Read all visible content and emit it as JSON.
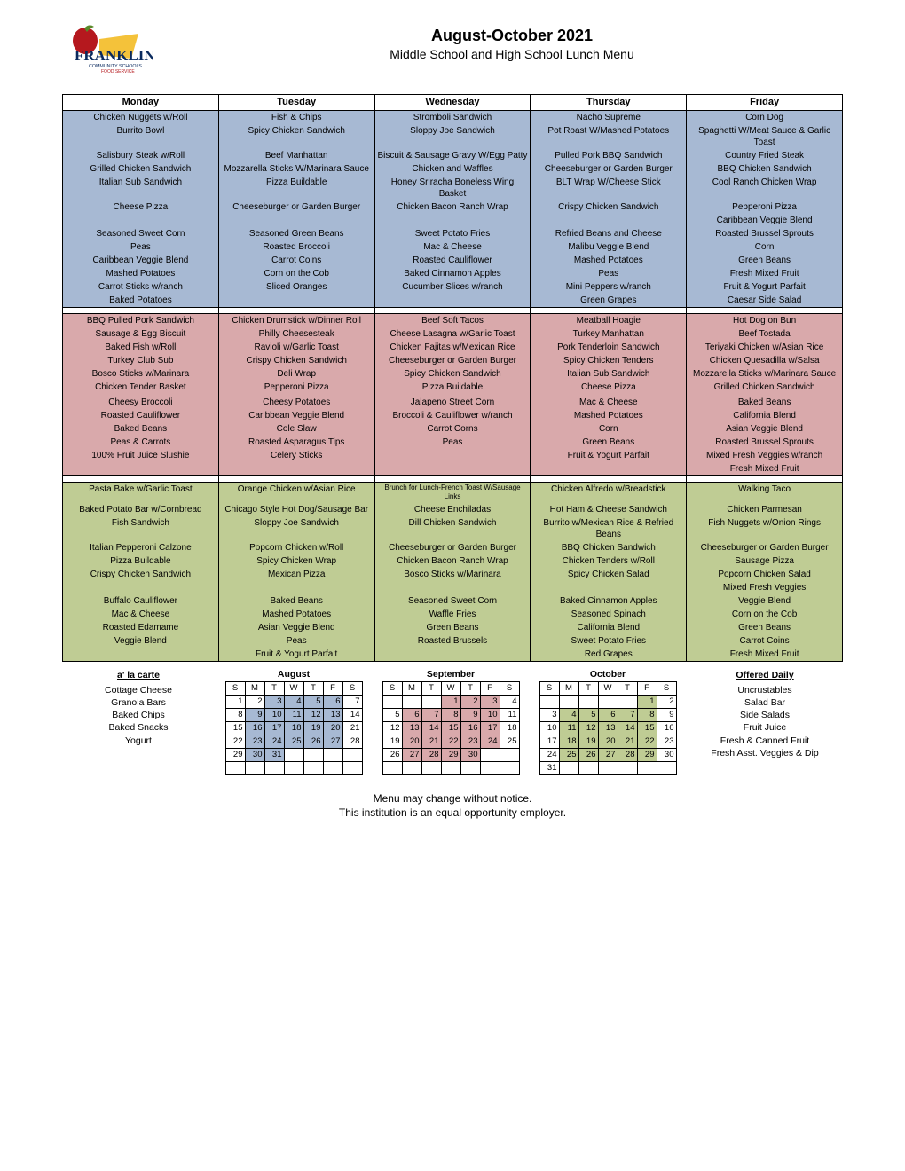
{
  "title": "August-October 2021",
  "subtitle": "Middle School and High School Lunch Menu",
  "days": [
    "Monday",
    "Tuesday",
    "Wednesday",
    "Thursday",
    "Friday"
  ],
  "colors": {
    "blue": "#a7b9d3",
    "pink": "#d9a9ab",
    "green": "#bfcc94",
    "cal_blue": "#a7b9d3",
    "cal_pink": "#d9a9ab",
    "cal_green": "#bfcc94"
  },
  "sections": [
    {
      "color": "blue",
      "rows": [
        [
          "Chicken Nuggets w/Roll",
          "Fish & Chips",
          "Stromboli Sandwich",
          "Nacho Supreme",
          "Corn Dog"
        ],
        [
          "Burrito Bowl",
          "Spicy Chicken Sandwich",
          "Sloppy Joe Sandwich",
          "Pot Roast W/Mashed Potatoes",
          "Spaghetti W/Meat Sauce & Garlic Toast"
        ],
        [
          "Salisbury Steak w/Roll",
          "Beef Manhattan",
          "Biscuit & Sausage Gravy W/Egg Patty",
          "Pulled Pork BBQ Sandwich",
          "Country Fried Steak"
        ],
        [
          "Grilled Chicken Sandwich",
          "Mozzarella Sticks W/Marinara Sauce",
          "Chicken and Waffles",
          "Cheeseburger or Garden Burger",
          "BBQ Chicken Sandwich"
        ],
        [
          "Italian Sub Sandwich",
          "Pizza Buildable",
          "Honey Sriracha Boneless Wing Basket",
          "BLT Wrap W/Cheese Stick",
          "Cool Ranch Chicken Wrap"
        ],
        [
          "Cheese Pizza",
          "Cheeseburger or Garden Burger",
          "Chicken Bacon Ranch Wrap",
          "Crispy Chicken Sandwich",
          "Pepperoni Pizza"
        ],
        [
          "",
          "",
          "",
          "",
          "Caribbean Veggie Blend"
        ],
        [
          "Seasoned Sweet Corn",
          "Seasoned Green Beans",
          "Sweet Potato Fries",
          "Refried Beans and Cheese",
          "Roasted Brussel Sprouts"
        ],
        [
          "Peas",
          "Roasted Broccoli",
          "Mac & Cheese",
          "Malibu Veggie Blend",
          "Corn"
        ],
        [
          "Caribbean Veggie Blend",
          "Carrot Coins",
          "Roasted Cauliflower",
          "Mashed Potatoes",
          "Green Beans"
        ],
        [
          "Mashed Potatoes",
          "Corn on the Cob",
          "Baked Cinnamon Apples",
          "Peas",
          "Fresh Mixed Fruit"
        ],
        [
          "Carrot Sticks w/ranch",
          "Sliced Oranges",
          "Cucumber Slices w/ranch",
          "Mini Peppers w/ranch",
          "Fruit & Yogurt Parfait"
        ],
        [
          "Baked Potatoes",
          "",
          "",
          "Green Grapes",
          "Caesar Side Salad"
        ]
      ]
    },
    {
      "color": "pink",
      "rows": [
        [
          "BBQ Pulled Pork Sandwich",
          "Chicken Drumstick w/Dinner Roll",
          "Beef Soft Tacos",
          "Meatball Hoagie",
          "Hot Dog on Bun"
        ],
        [
          "Sausage & Egg Biscuit",
          "Philly Cheesesteak",
          "Cheese Lasagna w/Garlic Toast",
          "Turkey Manhattan",
          "Beef Tostada"
        ],
        [
          "Baked Fish w/Roll",
          "Ravioli w/Garlic Toast",
          "Chicken Fajitas w/Mexican Rice",
          "Pork Tenderloin Sandwich",
          "Teriyaki Chicken w/Asian Rice"
        ],
        [
          "Turkey Club Sub",
          "Crispy Chicken Sandwich",
          "Cheeseburger or Garden Burger",
          "Spicy Chicken Tenders",
          "Chicken Quesadilla w/Salsa"
        ],
        [
          "Bosco Sticks w/Marinara",
          "Deli Wrap",
          "Spicy Chicken Sandwich",
          "Italian Sub Sandwich",
          "Mozzarella Sticks w/Marinara Sauce"
        ],
        [
          "Chicken Tender Basket",
          "Pepperoni Pizza",
          "Pizza Buildable",
          "Cheese Pizza",
          "Grilled Chicken Sandwich"
        ],
        [
          "",
          "",
          "",
          "",
          ""
        ],
        [
          "Cheesy Broccoli",
          "Cheesy Potatoes",
          "Jalapeno Street Corn",
          "Mac & Cheese",
          "Baked Beans"
        ],
        [
          "Roasted Cauliflower",
          "Caribbean Veggie Blend",
          "Broccoli & Cauliflower w/ranch",
          "Mashed Potatoes",
          "California Blend"
        ],
        [
          "Baked Beans",
          "Cole Slaw",
          "Carrot Corns",
          "Corn",
          "Asian Veggie Blend"
        ],
        [
          "Peas & Carrots",
          "Roasted Asparagus Tips",
          "Peas",
          "Green Beans",
          "Roasted Brussel Sprouts"
        ],
        [
          "100% Fruit Juice Slushie",
          "Celery Sticks",
          "",
          "Fruit & Yogurt Parfait",
          "Mixed Fresh Veggies w/ranch"
        ],
        [
          "",
          "",
          "",
          "",
          "Fresh Mixed Fruit"
        ]
      ]
    },
    {
      "color": "green",
      "rows": [
        [
          "Pasta Bake w/Garlic Toast",
          "Orange Chicken w/Asian Rice",
          "Brunch for Lunch-French Toast W/Sausage Links",
          "Chicken Alfredo w/Breadstick",
          "Walking Taco"
        ],
        [
          "Baked Potato Bar w/Cornbread",
          "Chicago Style Hot Dog/Sausage Bar",
          "Cheese Enchiladas",
          "Hot Ham & Cheese Sandwich",
          "Chicken Parmesan"
        ],
        [
          "Fish Sandwich",
          "Sloppy Joe Sandwich",
          "Dill Chicken Sandwich",
          "Burrito w/Mexican Rice & Refried Beans",
          "Fish Nuggets w/Onion Rings"
        ],
        [
          "Italian Pepperoni Calzone",
          "Popcorn Chicken w/Roll",
          "Cheeseburger or Garden Burger",
          "BBQ Chicken Sandwich",
          "Cheeseburger or Garden Burger"
        ],
        [
          "Pizza Buildable",
          "Spicy Chicken Wrap",
          "Chicken Bacon Ranch Wrap",
          "Chicken Tenders w/Roll",
          "Sausage Pizza"
        ],
        [
          "Crispy Chicken Sandwich",
          "Mexican Pizza",
          "Bosco Sticks w/Marinara",
          "Spicy Chicken Salad",
          "Popcorn Chicken Salad"
        ],
        [
          "",
          "",
          "",
          "",
          "Mixed Fresh Veggies"
        ],
        [
          "Buffalo Cauliflower",
          "Baked Beans",
          "Seasoned Sweet Corn",
          "Baked Cinnamon Apples",
          "Veggie Blend"
        ],
        [
          "Mac & Cheese",
          "Mashed Potatoes",
          "Waffle Fries",
          "Seasoned Spinach",
          "Corn on the Cob"
        ],
        [
          "Roasted Edamame",
          "Asian Veggie Blend",
          "Green Beans",
          "California Blend",
          "Green Beans"
        ],
        [
          "Veggie Blend",
          "Peas",
          "Roasted Brussels",
          "Sweet Potato Fries",
          "Carrot Coins"
        ],
        [
          "",
          "Fruit & Yogurt Parfait",
          "",
          "Red Grapes",
          "Fresh Mixed Fruit"
        ]
      ]
    }
  ],
  "alacarte": {
    "heading": "a' la carte",
    "items": [
      "Cottage Cheese",
      "Granola Bars",
      "Baked Chips",
      "Baked Snacks",
      "Yogurt"
    ]
  },
  "offered": {
    "heading": "Offered Daily",
    "items": [
      "Uncrustables",
      "Salad Bar",
      "Side Salads",
      "Fruit Juice",
      "Fresh & Canned Fruit",
      "Fresh Asst. Veggies & Dip"
    ]
  },
  "calendars": [
    {
      "name": "August",
      "color": "cal_blue",
      "days": [
        "S",
        "M",
        "T",
        "W",
        "T",
        "F",
        "S"
      ],
      "weeks": [
        [
          "1",
          "2",
          "3",
          "4",
          "5",
          "6",
          "7"
        ],
        [
          "8",
          "9",
          "10",
          "11",
          "12",
          "13",
          "14"
        ],
        [
          "15",
          "16",
          "17",
          "18",
          "19",
          "20",
          "21"
        ],
        [
          "22",
          "23",
          "24",
          "25",
          "26",
          "27",
          "28"
        ],
        [
          "29",
          "30",
          "31",
          "",
          "",
          "",
          ""
        ],
        [
          "",
          "",
          "",
          "",
          "",
          "",
          ""
        ]
      ],
      "shaded": [
        [
          0,
          2
        ],
        [
          0,
          3
        ],
        [
          0,
          4
        ],
        [
          0,
          5
        ],
        [
          1,
          1
        ],
        [
          1,
          2
        ],
        [
          1,
          3
        ],
        [
          1,
          4
        ],
        [
          1,
          5
        ],
        [
          2,
          1
        ],
        [
          2,
          2
        ],
        [
          2,
          3
        ],
        [
          2,
          4
        ],
        [
          2,
          5
        ],
        [
          3,
          1
        ],
        [
          3,
          2
        ],
        [
          3,
          3
        ],
        [
          3,
          4
        ],
        [
          3,
          5
        ],
        [
          4,
          1
        ],
        [
          4,
          2
        ]
      ]
    },
    {
      "name": "September",
      "color": "cal_pink",
      "days": [
        "S",
        "M",
        "T",
        "W",
        "T",
        "F",
        "S"
      ],
      "weeks": [
        [
          "",
          "",
          "",
          "1",
          "2",
          "3",
          "4"
        ],
        [
          "5",
          "6",
          "7",
          "8",
          "9",
          "10",
          "11"
        ],
        [
          "12",
          "13",
          "14",
          "15",
          "16",
          "17",
          "18"
        ],
        [
          "19",
          "20",
          "21",
          "22",
          "23",
          "24",
          "25"
        ],
        [
          "26",
          "27",
          "28",
          "29",
          "30",
          "",
          ""
        ],
        [
          "",
          "",
          "",
          "",
          "",
          "",
          ""
        ]
      ],
      "shaded": [
        [
          0,
          3
        ],
        [
          0,
          4
        ],
        [
          0,
          5
        ],
        [
          1,
          1
        ],
        [
          1,
          2
        ],
        [
          1,
          3
        ],
        [
          1,
          4
        ],
        [
          1,
          5
        ],
        [
          2,
          1
        ],
        [
          2,
          2
        ],
        [
          2,
          3
        ],
        [
          2,
          4
        ],
        [
          2,
          5
        ],
        [
          3,
          1
        ],
        [
          3,
          2
        ],
        [
          3,
          3
        ],
        [
          3,
          4
        ],
        [
          3,
          5
        ],
        [
          4,
          1
        ],
        [
          4,
          2
        ],
        [
          4,
          3
        ],
        [
          4,
          4
        ]
      ]
    },
    {
      "name": "October",
      "color": "cal_green",
      "days": [
        "S",
        "M",
        "T",
        "W",
        "T",
        "F",
        "S"
      ],
      "weeks": [
        [
          "",
          "",
          "",
          "",
          "",
          "1",
          "2"
        ],
        [
          "3",
          "4",
          "5",
          "6",
          "7",
          "8",
          "9"
        ],
        [
          "10",
          "11",
          "12",
          "13",
          "14",
          "15",
          "16"
        ],
        [
          "17",
          "18",
          "19",
          "20",
          "21",
          "22",
          "23"
        ],
        [
          "24",
          "25",
          "26",
          "27",
          "28",
          "29",
          "30"
        ],
        [
          "31",
          "",
          "",
          "",
          "",
          "",
          ""
        ]
      ],
      "shaded": [
        [
          0,
          5
        ],
        [
          1,
          1
        ],
        [
          1,
          2
        ],
        [
          1,
          3
        ],
        [
          1,
          4
        ],
        [
          1,
          5
        ],
        [
          2,
          1
        ],
        [
          2,
          2
        ],
        [
          2,
          3
        ],
        [
          2,
          4
        ],
        [
          2,
          5
        ],
        [
          3,
          1
        ],
        [
          3,
          2
        ],
        [
          3,
          3
        ],
        [
          3,
          4
        ],
        [
          3,
          5
        ],
        [
          4,
          1
        ],
        [
          4,
          2
        ],
        [
          4,
          3
        ],
        [
          4,
          4
        ],
        [
          4,
          5
        ]
      ]
    }
  ],
  "footer_line1": "Menu may change without notice.",
  "footer_line2": "This institution is an equal opportunity employer."
}
